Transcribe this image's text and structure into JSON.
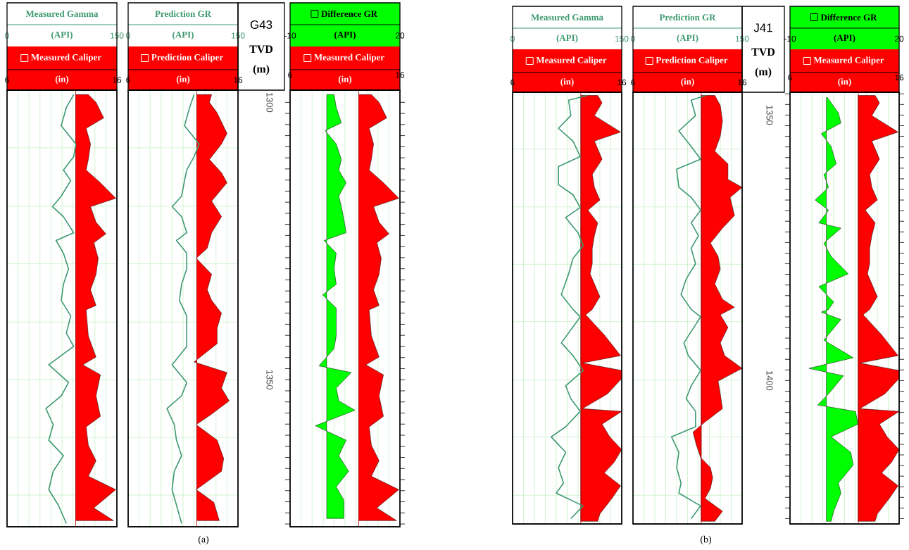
{
  "chart_data": [
    {
      "type": "line",
      "orientation": "horizontal",
      "xlim": [
        0,
        150
      ],
      "xticks": [
        0,
        150
      ],
      "xlabel": "(API)",
      "x2lim": [
        6,
        16
      ],
      "x2ticks": [
        6,
        {
          "value": 7,
          "label": null
        },
        {
          "value": 8,
          "label": null
        },
        {
          "value": 9,
          "label": null
        },
        {
          "value": 10,
          "label": null
        },
        {
          "value": 11,
          "label": null
        },
        {
          "value": 12,
          "label": null
        },
        {
          "value": 13,
          "label": null
        },
        {
          "value": 14,
          "label": null
        },
        {
          "value": 15,
          "label": null
        },
        16
      ],
      "x2label": "(in)",
      "ylim": [
        1376.5,
        1297.8
      ],
      "yticks": [
        {
          "value": 1308.2,
          "label": null
        },
        {
          "value": 1318.7,
          "label": null
        },
        {
          "value": 1329.1,
          "label": null
        },
        {
          "value": 1339.6,
          "label": null
        },
        {
          "value": 1350,
          "label": null
        },
        {
          "value": 1360.4,
          "label": null
        },
        {
          "value": 1370.8,
          "label": null
        }
      ],
      "grid": true,
      "tick_labels": "x",
      "ref_lines": [
        {
          "axis": "x2",
          "value": 12.25,
          "color": "#b00000"
        }
      ],
      "legend": "top",
      "series": [
        {
          "name": "Measured Gamma",
          "color": "#3d9970",
          "values": [
            91,
            81,
            74,
            94,
            91,
            77,
            87,
            74,
            62,
            77,
            91,
            67,
            77,
            84,
            77,
            74,
            87,
            81,
            91,
            57,
            84,
            74,
            53,
            63,
            57,
            77,
            63,
            57,
            70,
            81
          ],
          "x": [
            1298.6,
            1300.9,
            1304.2,
            1307.5,
            1309.8,
            1312.2,
            1314.1,
            1316.9,
            1318.8,
            1320.6,
            1323.5,
            1324.9,
            1327.2,
            1330.0,
            1332.8,
            1335.7,
            1338.5,
            1341.6,
            1344.0,
            1347.3,
            1350.5,
            1352.9,
            1355.2,
            1358.1,
            1360.9,
            1363.7,
            1366.5,
            1369.8,
            1372.6,
            1375.9
          ]
        },
        {
          "name": "Measured Caliper",
          "type": "area",
          "axis": "x2",
          "color": "#ff0000",
          "values": [
            13.4,
            14.1,
            14.8,
            13.2,
            13.6,
            13.4,
            13.2,
            14.5,
            15.9,
            13.6,
            14.1,
            15.0,
            13.9,
            14.3,
            14.1,
            13.6,
            14.1,
            13.2,
            13.4,
            14.1,
            12.9,
            14.5,
            14.1,
            14.5,
            13.2,
            13.4,
            14.1,
            13.4,
            15.9,
            13.9,
            15.7
          ],
          "x": [
            1298.6,
            1300.0,
            1302.8,
            1304.7,
            1307.5,
            1310.3,
            1312.2,
            1314.5,
            1317.3,
            1318.8,
            1321.6,
            1323.7,
            1325.3,
            1328.1,
            1331.0,
            1333.8,
            1336.6,
            1337.4,
            1342.1,
            1345.9,
            1347.3,
            1349.1,
            1352.9,
            1356.6,
            1358.5,
            1361.8,
            1364.6,
            1367.4,
            1369.8,
            1373.1,
            1375.4
          ]
        }
      ]
    },
    {
      "type": "line",
      "orientation": "horizontal",
      "xlim": [
        0,
        150
      ],
      "xticks": [
        0,
        150
      ],
      "xlabel": "(API)",
      "x2lim": [
        6,
        16
      ],
      "x2ticks": [
        6,
        {
          "value": 7,
          "label": null
        },
        {
          "value": 8,
          "label": null
        },
        {
          "value": 9,
          "label": null
        },
        {
          "value": 10,
          "label": null
        },
        {
          "value": 11,
          "label": null
        },
        {
          "value": 12,
          "label": null
        },
        {
          "value": 13,
          "label": null
        },
        {
          "value": 14,
          "label": null
        },
        {
          "value": 15,
          "label": null
        },
        16
      ],
      "x2label": "(in)",
      "ylim": [
        1376.5,
        1297.8
      ],
      "yticks": [
        {
          "value": 1308.2,
          "label": null
        },
        {
          "value": 1318.7,
          "label": null
        },
        {
          "value": 1329.1,
          "label": null
        },
        {
          "value": 1339.6,
          "label": null
        },
        {
          "value": 1350,
          "label": null
        },
        {
          "value": 1360.4,
          "label": null
        },
        {
          "value": 1370.8,
          "label": null
        }
      ],
      "grid": true,
      "tick_labels": "x",
      "ref_lines": [
        {
          "axis": "x2",
          "value": 12.25,
          "color": "#b00000"
        }
      ],
      "legend": "top",
      "series": [
        {
          "name": "Prediction GR",
          "color": "#3d9970",
          "values": [
            90,
            84,
            77,
            97,
            90,
            80,
            77,
            73,
            60,
            73,
            80,
            66,
            80,
            80,
            73,
            70,
            80,
            80,
            80,
            60,
            80,
            73,
            53,
            63,
            66,
            73,
            63,
            60,
            66,
            73
          ],
          "x": [
            1298.6,
            1300.9,
            1304.2,
            1307.5,
            1309.8,
            1312.2,
            1314.1,
            1316.9,
            1318.8,
            1320.6,
            1323.5,
            1324.9,
            1327.2,
            1330.0,
            1332.8,
            1335.7,
            1338.5,
            1341.6,
            1344.0,
            1347.3,
            1350.5,
            1352.9,
            1355.2,
            1358.1,
            1360.9,
            1363.7,
            1366.5,
            1369.8,
            1372.6,
            1375.9
          ]
        },
        {
          "name": "Prediction Caliper",
          "type": "area",
          "axis": "x2",
          "color": "#ff0000",
          "values": [
            13.6,
            13.4,
            14.1,
            15.0,
            14.5,
            13.4,
            14.5,
            15.0,
            13.6,
            14.5,
            13.6,
            13.2,
            12.2,
            13.6,
            13.2,
            13.6,
            14.5,
            14.1,
            14.1,
            12.0,
            15.0,
            14.5,
            15.2,
            13.6,
            12.2,
            14.1,
            14.7,
            14.5,
            12.2,
            13.8,
            14.3
          ],
          "x": [
            1298.6,
            1300.0,
            1301.9,
            1305.6,
            1307.5,
            1310.3,
            1312.7,
            1314.5,
            1317.8,
            1320.6,
            1323.5,
            1326.3,
            1328.1,
            1331.0,
            1333.8,
            1335.7,
            1338.0,
            1340.7,
            1343.5,
            1346.8,
            1348.7,
            1351.5,
            1353.8,
            1356.2,
            1358.1,
            1360.9,
            1364.2,
            1366.5,
            1369.8,
            1372.1,
            1375.4
          ]
        }
      ]
    },
    {
      "type": "area",
      "orientation": "horizontal",
      "title": "G43",
      "ylabel": "TVD (m)",
      "annotations": [
        "(a)"
      ],
      "xlim": [
        -10,
        20
      ],
      "xticks": [
        -10,
        20
      ],
      "xlabel": "(API)",
      "x2lim": [
        6,
        16
      ],
      "x2ticks": [
        6,
        {
          "value": 7,
          "label": null
        },
        {
          "value": 8,
          "label": null
        },
        {
          "value": 9,
          "label": null
        },
        {
          "value": 10,
          "label": null
        },
        {
          "value": 11,
          "label": null
        },
        {
          "value": 12,
          "label": null
        },
        {
          "value": 13,
          "label": null
        },
        {
          "value": 14,
          "label": null
        },
        {
          "value": 15,
          "label": null
        },
        16
      ],
      "x2label": "(in)",
      "ylim": [
        1376.5,
        1297.8
      ],
      "yticks": [
        1300,
        {
          "value": 1302,
          "label": null
        },
        {
          "value": 1304,
          "label": null
        },
        {
          "value": 1306,
          "label": null
        },
        {
          "value": 1308,
          "label": null
        },
        {
          "value": 1310,
          "label": null
        },
        {
          "value": 1312,
          "label": null
        },
        {
          "value": 1314,
          "label": null
        },
        {
          "value": 1316,
          "label": null
        },
        {
          "value": 1318,
          "label": null
        },
        {
          "value": 1320,
          "label": null
        },
        {
          "value": 1322,
          "label": null
        },
        {
          "value": 1324,
          "label": null
        },
        {
          "value": 1326,
          "label": null
        },
        {
          "value": 1328,
          "label": null
        },
        {
          "value": 1330,
          "label": null
        },
        {
          "value": 1332,
          "label": null
        },
        {
          "value": 1334,
          "label": null
        },
        {
          "value": 1336,
          "label": null
        },
        {
          "value": 1338,
          "label": null
        },
        {
          "value": 1340,
          "label": null
        },
        {
          "value": 1342,
          "label": null
        },
        {
          "value": 1344,
          "label": null
        },
        {
          "value": 1346,
          "label": null
        },
        {
          "value": 1348,
          "label": null
        },
        1350,
        {
          "value": 1352,
          "label": null
        },
        {
          "value": 1354,
          "label": null
        },
        {
          "value": 1356,
          "label": null
        },
        {
          "value": 1358,
          "label": null
        },
        {
          "value": 1360,
          "label": null
        },
        {
          "value": 1362,
          "label": null
        },
        {
          "value": 1364,
          "label": null
        },
        {
          "value": 1366,
          "label": null
        },
        {
          "value": 1368,
          "label": null
        },
        {
          "value": 1370,
          "label": null
        },
        {
          "value": 1372,
          "label": null
        },
        {
          "value": 1374,
          "label": null
        },
        {
          "value": 1376,
          "label": null
        }
      ],
      "grid": "x",
      "ref_lines": [
        {
          "axis": "x2",
          "value": 12.25,
          "color": "#b00000"
        }
      ],
      "legend": "top",
      "series": [
        {
          "name": "Difference GR",
          "color": "#00ff00",
          "values": [
            2.0,
            2.6,
            4.0,
            -0.4,
            2.6,
            4.0,
            3.3,
            5.3,
            3.3,
            4.0,
            4.7,
            5.3,
            -0.7,
            2.6,
            2.0,
            2.6,
            -1.1,
            2.6,
            2.6,
            2.0,
            -2.1,
            6.7,
            2.6,
            3.3,
            7.7,
            -3.1,
            5.3,
            3.3,
            6.0,
            2.6,
            4.7,
            4.7
          ],
          "x": [
            1298.6,
            1300.9,
            1303.7,
            1305.1,
            1307.5,
            1310.3,
            1312.2,
            1314.5,
            1316.9,
            1318.8,
            1321.1,
            1323.5,
            1324.9,
            1327.2,
            1330.0,
            1332.8,
            1334.7,
            1337.1,
            1342.1,
            1344.4,
            1347.5,
            1348.7,
            1351.5,
            1353.8,
            1355.5,
            1358.3,
            1360.9,
            1363.7,
            1366.5,
            1369.3,
            1371.7,
            1375.0
          ]
        },
        {
          "name": "Measured Caliper",
          "axis": "x2",
          "color": "#ff0000",
          "values": [
            13.4,
            14.1,
            14.8,
            13.2,
            13.6,
            13.4,
            13.2,
            14.5,
            15.9,
            13.6,
            14.1,
            15.0,
            13.9,
            14.3,
            14.1,
            13.6,
            14.1,
            13.2,
            13.4,
            14.1,
            12.9,
            14.5,
            14.1,
            14.5,
            13.2,
            13.4,
            14.1,
            13.4,
            15.9,
            13.9,
            15.7
          ],
          "x": [
            1298.6,
            1300.0,
            1302.8,
            1304.7,
            1307.5,
            1310.3,
            1312.2,
            1314.5,
            1317.3,
            1318.8,
            1321.6,
            1323.7,
            1325.3,
            1328.1,
            1331.0,
            1333.8,
            1336.6,
            1337.4,
            1342.1,
            1345.9,
            1347.3,
            1349.1,
            1352.9,
            1356.6,
            1358.5,
            1361.8,
            1364.6,
            1367.4,
            1369.8,
            1373.1,
            1375.4
          ]
        }
      ]
    },
    {
      "type": "line",
      "orientation": "horizontal",
      "xlim": [
        0,
        150
      ],
      "xticks": [
        0,
        150
      ],
      "xlabel": "(API)",
      "x2lim": [
        6,
        16
      ],
      "x2ticks": [
        6,
        {
          "value": 7,
          "label": null
        },
        {
          "value": 8,
          "label": null
        },
        {
          "value": 9,
          "label": null
        },
        {
          "value": 10,
          "label": null
        },
        {
          "value": 11,
          "label": null
        },
        {
          "value": 12,
          "label": null
        },
        {
          "value": 13,
          "label": null
        },
        {
          "value": 14,
          "label": null
        },
        {
          "value": 15,
          "label": null
        },
        16
      ],
      "x2label": "(in)",
      "ylim": [
        1427,
        1345.7
      ],
      "yticks": [
        {
          "value": 1356.4,
          "label": null
        },
        {
          "value": 1367.3,
          "label": null
        },
        {
          "value": 1378.1,
          "label": null
        },
        {
          "value": 1388.9,
          "label": null
        },
        {
          "value": 1399.9,
          "label": null
        },
        {
          "value": 1410.6,
          "label": null
        },
        {
          "value": 1421.6,
          "label": null
        }
      ],
      "grid": true,
      "tick_labels": "x",
      "ref_lines": [
        {
          "axis": "x2",
          "value": 12.25,
          "color": "#b00000"
        }
      ],
      "legend": "top",
      "series": [
        {
          "name": "Measured Gamma",
          "color": "#3d9970",
          "values": [
            103,
            77,
            80,
            63,
            83,
            93,
            63,
            63,
            83,
            93,
            73,
            90,
            97,
            83,
            77,
            67,
            83,
            93,
            67,
            83,
            97,
            73,
            80,
            93,
            73,
            53,
            73,
            63,
            70,
            60,
            97,
            80
          ],
          "x": [
            1346.3,
            1347.2,
            1350.1,
            1352.5,
            1354.9,
            1357.8,
            1359.7,
            1363.1,
            1365.0,
            1367.4,
            1369.3,
            1372.2,
            1374.6,
            1377.0,
            1379.9,
            1383.8,
            1386.6,
            1388.0,
            1392.9,
            1395.3,
            1398.1,
            1401.0,
            1403.4,
            1405.8,
            1408.7,
            1410.6,
            1413.5,
            1416.4,
            1419.3,
            1421.2,
            1423.6,
            1426.0
          ]
        },
        {
          "name": "Measured Caliper",
          "type": "area",
          "axis": "x2",
          "color": "#ff0000",
          "values": [
            13.8,
            14.2,
            13.5,
            15.9,
            13.5,
            14.2,
            13.3,
            13.5,
            14.0,
            12.9,
            13.8,
            13.5,
            13.3,
            13.3,
            13.1,
            14.0,
            13.3,
            12.7,
            14.4,
            15.9,
            12.4,
            16.0,
            16.0,
            14.7,
            12.4,
            16.0,
            14.2,
            14.9,
            16.0,
            15.3,
            14.4,
            15.9,
            15.1,
            14.0,
            13.8
          ],
          "x": [
            1346.3,
            1347.7,
            1350.1,
            1353.2,
            1354.9,
            1358.3,
            1361.2,
            1363.6,
            1366.0,
            1367.9,
            1370.3,
            1372.7,
            1375.1,
            1378.0,
            1379.9,
            1384.2,
            1386.6,
            1387.6,
            1391.4,
            1395.3,
            1396.7,
            1398.1,
            1399.6,
            1402.5,
            1405.3,
            1405.8,
            1408.2,
            1410.6,
            1413.0,
            1415.4,
            1417.4,
            1419.8,
            1422.2,
            1425.1,
            1426.5
          ]
        }
      ]
    },
    {
      "type": "line",
      "orientation": "horizontal",
      "xlim": [
        0,
        150
      ],
      "xticks": [
        0,
        150
      ],
      "xlabel": "(API)",
      "x2lim": [
        6,
        16
      ],
      "x2ticks": [
        6,
        {
          "value": 7,
          "label": null
        },
        {
          "value": 8,
          "label": null
        },
        {
          "value": 9,
          "label": null
        },
        {
          "value": 10,
          "label": null
        },
        {
          "value": 11,
          "label": null
        },
        {
          "value": 12,
          "label": null
        },
        {
          "value": 13,
          "label": null
        },
        {
          "value": 14,
          "label": null
        },
        {
          "value": 15,
          "label": null
        },
        16
      ],
      "x2label": "(in)",
      "ylim": [
        1427,
        1345.7
      ],
      "yticks": [
        {
          "value": 1356.4,
          "label": null
        },
        {
          "value": 1367.3,
          "label": null
        },
        {
          "value": 1378.1,
          "label": null
        },
        {
          "value": 1388.9,
          "label": null
        },
        {
          "value": 1399.9,
          "label": null
        },
        {
          "value": 1410.6,
          "label": null
        },
        {
          "value": 1421.6,
          "label": null
        }
      ],
      "grid": true,
      "tick_labels": "x",
      "ref_lines": [
        {
          "axis": "x2",
          "value": 12.25,
          "color": "#b00000"
        }
      ],
      "legend": "top",
      "series": [
        {
          "name": "Prediction GR",
          "color": "#3d9970",
          "values": [
            100,
            80,
            86,
            63,
            80,
            93,
            60,
            63,
            80,
            93,
            80,
            90,
            80,
            86,
            73,
            66,
            80,
            93,
            70,
            76,
            93,
            80,
            73,
            86,
            86,
            53,
            63,
            60,
            66,
            63,
            93,
            80
          ],
          "x": [
            1346.3,
            1347.2,
            1350.1,
            1353.0,
            1355.9,
            1358.3,
            1360.2,
            1363.6,
            1365.5,
            1367.9,
            1370.3,
            1372.7,
            1375.1,
            1378.0,
            1380.9,
            1383.8,
            1386.6,
            1388.0,
            1392.9,
            1395.3,
            1398.1,
            1401.0,
            1403.4,
            1405.8,
            1408.7,
            1410.6,
            1413.5,
            1416.4,
            1419.3,
            1421.2,
            1423.6,
            1426.0
          ]
        },
        {
          "name": "Prediction Caliper",
          "type": "area",
          "axis": "x2",
          "color": "#ff0000",
          "values": [
            13.5,
            14.0,
            14.2,
            14.0,
            13.5,
            14.7,
            14.7,
            16.0,
            14.9,
            15.3,
            14.2,
            13.1,
            13.8,
            14.0,
            13.5,
            14.2,
            15.3,
            14.0,
            14.7,
            14.0,
            14.4,
            16.0,
            13.8,
            14.0,
            14.2,
            12.6,
            11.5,
            11.8,
            12.2,
            13.1,
            13.3,
            13.1,
            12.6,
            14.2,
            13.5
          ],
          "x": [
            1346.3,
            1348.2,
            1351.1,
            1354.0,
            1356.8,
            1359.2,
            1362.1,
            1363.6,
            1365.5,
            1368.9,
            1371.3,
            1374.1,
            1376.6,
            1379.0,
            1381.8,
            1384.7,
            1386.2,
            1387.6,
            1390.0,
            1392.9,
            1395.3,
            1397.7,
            1400.1,
            1402.5,
            1405.3,
            1407.8,
            1409.7,
            1412.1,
            1414.5,
            1416.4,
            1418.3,
            1420.3,
            1422.2,
            1424.6,
            1426.5
          ]
        }
      ]
    },
    {
      "type": "area",
      "orientation": "horizontal",
      "title": "J41",
      "ylabel": "TVD (m)",
      "annotations": [
        "(b)"
      ],
      "xlim": [
        -10,
        20
      ],
      "xticks": [
        -10,
        20
      ],
      "xlabel": "(API)",
      "x2lim": [
        6,
        16
      ],
      "x2ticks": [
        6,
        {
          "value": 7,
          "label": null
        },
        {
          "value": 8,
          "label": null
        },
        {
          "value": 9,
          "label": null
        },
        {
          "value": 10,
          "label": null
        },
        {
          "value": 11,
          "label": null
        },
        {
          "value": 12,
          "label": null
        },
        {
          "value": 13,
          "label": null
        },
        {
          "value": 14,
          "label": null
        },
        {
          "value": 15,
          "label": null
        },
        16
      ],
      "x2label": "(in)",
      "ylim": [
        1427,
        1345.7
      ],
      "yticks": [
        {
          "value": 1346,
          "label": null
        },
        {
          "value": 1348,
          "label": null
        },
        1350,
        {
          "value": 1352,
          "label": null
        },
        {
          "value": 1354,
          "label": null
        },
        {
          "value": 1356,
          "label": null
        },
        {
          "value": 1358,
          "label": null
        },
        {
          "value": 1360,
          "label": null
        },
        {
          "value": 1362,
          "label": null
        },
        {
          "value": 1364,
          "label": null
        },
        {
          "value": 1366,
          "label": null
        },
        {
          "value": 1368,
          "label": null
        },
        {
          "value": 1370,
          "label": null
        },
        {
          "value": 1372,
          "label": null
        },
        {
          "value": 1374,
          "label": null
        },
        {
          "value": 1376,
          "label": null
        },
        {
          "value": 1378,
          "label": null
        },
        {
          "value": 1380,
          "label": null
        },
        {
          "value": 1382,
          "label": null
        },
        {
          "value": 1384,
          "label": null
        },
        {
          "value": 1386,
          "label": null
        },
        {
          "value": 1388,
          "label": null
        },
        {
          "value": 1390,
          "label": null
        },
        {
          "value": 1392,
          "label": null
        },
        {
          "value": 1394,
          "label": null
        },
        {
          "value": 1396,
          "label": null
        },
        {
          "value": 1398,
          "label": null
        },
        1400,
        {
          "value": 1402,
          "label": null
        },
        {
          "value": 1404,
          "label": null
        },
        {
          "value": 1406,
          "label": null
        },
        {
          "value": 1408,
          "label": null
        },
        {
          "value": 1410,
          "label": null
        },
        {
          "value": 1412,
          "label": null
        },
        {
          "value": 1414,
          "label": null
        },
        {
          "value": 1416,
          "label": null
        },
        {
          "value": 1418,
          "label": null
        },
        {
          "value": 1420,
          "label": null
        },
        {
          "value": 1422,
          "label": null
        },
        {
          "value": 1424,
          "label": null
        },
        {
          "value": 1426,
          "label": null
        }
      ],
      "grid": "x",
      "ref_lines": [
        {
          "axis": "x2",
          "value": 12.25,
          "color": "#b00000"
        }
      ],
      "legend": "top",
      "series": [
        {
          "name": "Difference GR",
          "color": "#00ff00",
          "values": [
            0.3,
            3.3,
            4.0,
            -1.4,
            1.3,
            2.7,
            -0.7,
            0.6,
            -3.1,
            0.6,
            -2.1,
            4.0,
            -0.7,
            1.3,
            6.0,
            -2.1,
            2.0,
            0.6,
            -1.4,
            4.0,
            -0.7,
            7.4,
            -4.8,
            4.7,
            0.6,
            -2.4,
            8.0,
            8.7,
            1.3,
            6.7,
            7.4,
            3.3,
            4.0,
            2.0,
            1.3
          ],
          "x": [
            1346.7,
            1349.6,
            1351.5,
            1353.5,
            1355.9,
            1359.2,
            1361.2,
            1363.6,
            1366.0,
            1367.9,
            1370.3,
            1371.3,
            1374.1,
            1376.6,
            1379.9,
            1382.3,
            1385.2,
            1386.6,
            1387.1,
            1388.5,
            1392.4,
            1395.7,
            1397.7,
            1399.1,
            1402.5,
            1404.6,
            1405.8,
            1408.2,
            1410.6,
            1413.5,
            1415.9,
            1419.3,
            1421.2,
            1424.6,
            1426.5
          ]
        },
        {
          "name": "Measured Caliper",
          "axis": "x2",
          "color": "#ff0000",
          "values": [
            13.8,
            14.2,
            13.5,
            15.9,
            13.5,
            14.2,
            13.3,
            13.5,
            14.0,
            12.9,
            13.8,
            13.5,
            13.3,
            13.3,
            13.1,
            14.0,
            13.3,
            12.7,
            14.4,
            15.9,
            12.4,
            16.0,
            16.0,
            14.7,
            12.4,
            16.0,
            14.2,
            14.9,
            16.0,
            15.3,
            14.4,
            15.9,
            15.1,
            14.0,
            13.8
          ],
          "x": [
            1346.3,
            1347.7,
            1350.1,
            1353.2,
            1354.9,
            1358.3,
            1361.2,
            1363.6,
            1366.0,
            1367.9,
            1370.3,
            1372.7,
            1375.1,
            1378.0,
            1379.9,
            1384.2,
            1386.6,
            1387.6,
            1391.4,
            1395.3,
            1396.7,
            1398.1,
            1399.6,
            1402.5,
            1405.3,
            1405.8,
            1408.2,
            1410.6,
            1413.0,
            1415.4,
            1417.4,
            1419.8,
            1422.2,
            1425.1,
            1426.5
          ]
        }
      ]
    }
  ]
}
